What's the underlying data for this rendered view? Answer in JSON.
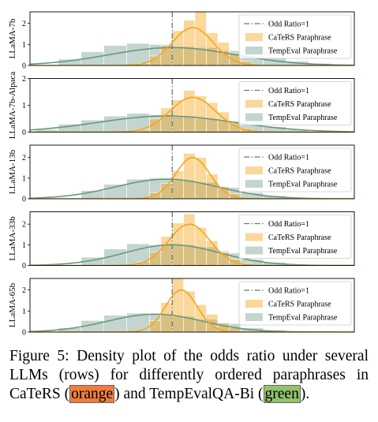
{
  "colors": {
    "orange": "#f4a622",
    "orange_fill": "#fbd28c",
    "green": "#6a9684",
    "green_fill": "#b9cdc3",
    "vline": "#5f7f77",
    "highlight_orange": "#f07d3c",
    "highlight_green": "#92c36b"
  },
  "caption": {
    "prefix": "Figure 5: Density plot of the odds ratio under several LLMs (rows) for differently ordered paraphrases in CaTeRS (",
    "orange_word": "orange",
    "middle": ") and TempEvalQA-Bi (",
    "green_word": "green",
    "suffix": ")."
  },
  "chart_data": [
    {
      "type": "area",
      "ylabel": "LLaMA-7b",
      "ylim": [
        0,
        2.55
      ],
      "yticks": [
        "0",
        "1",
        "2"
      ],
      "vline_x": 1,
      "legend": [
        "Odd Ratio=1",
        "CaTeRS Paraphrase",
        "TempEval Paraphrase"
      ],
      "legend_position": "top-right",
      "series": [
        {
          "name": "CaTeRS Paraphrase",
          "kde": {
            "center": 1.18,
            "sd": 0.18,
            "peak": 1.8
          },
          "bins": [
            [
              0.7,
              0.8,
              0.1
            ],
            [
              0.8,
              0.9,
              0.45
            ],
            [
              0.9,
              1.0,
              0.95
            ],
            [
              1.0,
              1.1,
              1.65
            ],
            [
              1.1,
              1.2,
              2.15
            ],
            [
              1.2,
              1.3,
              2.85
            ],
            [
              1.3,
              1.4,
              1.55
            ],
            [
              1.4,
              1.5,
              1.1
            ],
            [
              1.5,
              1.6,
              0.6
            ],
            [
              1.6,
              1.7,
              0.2
            ]
          ]
        },
        {
          "name": "TempEval Paraphrase",
          "kde": {
            "center": 1.0,
            "sd": 0.55,
            "peak": 0.85
          },
          "bins": [
            [
              0.0,
              0.2,
              0.3
            ],
            [
              0.2,
              0.4,
              0.65
            ],
            [
              0.4,
              0.6,
              0.95
            ],
            [
              0.6,
              0.8,
              1.05
            ],
            [
              0.8,
              1.0,
              1.0
            ],
            [
              1.0,
              1.2,
              0.9
            ],
            [
              1.2,
              1.4,
              0.85
            ],
            [
              1.4,
              1.6,
              0.7
            ],
            [
              1.6,
              1.8,
              0.5
            ],
            [
              1.8,
              2.0,
              0.35
            ],
            [
              2.0,
              2.2,
              0.2
            ],
            [
              2.2,
              2.4,
              0.1
            ]
          ]
        }
      ]
    },
    {
      "type": "area",
      "ylabel": "LLaMA-7b-Alpaca",
      "ylim": [
        0,
        2.0
      ],
      "yticks": [
        "0",
        "1",
        "2"
      ],
      "vline_x": 1,
      "legend": [
        "Odd Ratio=1",
        "CaTeRS Paraphrase",
        "TempEval Paraphrase"
      ],
      "legend_position": "top-right",
      "series": [
        {
          "name": "CaTeRS Paraphrase",
          "kde": {
            "center": 1.18,
            "sd": 0.2,
            "peak": 1.3
          },
          "bins": [
            [
              0.7,
              0.8,
              0.1
            ],
            [
              0.8,
              0.9,
              0.5
            ],
            [
              0.9,
              1.0,
              0.9
            ],
            [
              1.0,
              1.1,
              1.2
            ],
            [
              1.1,
              1.2,
              1.55
            ],
            [
              1.2,
              1.3,
              1.35
            ],
            [
              1.3,
              1.4,
              1.1
            ],
            [
              1.4,
              1.5,
              0.75
            ],
            [
              1.5,
              1.6,
              0.35
            ],
            [
              1.6,
              1.7,
              0.15
            ]
          ]
        },
        {
          "name": "TempEval Paraphrase",
          "kde": {
            "center": 0.95,
            "sd": 0.6,
            "peak": 0.6
          },
          "bins": [
            [
              -0.2,
              0.0,
              0.1
            ],
            [
              0.0,
              0.2,
              0.3
            ],
            [
              0.2,
              0.4,
              0.45
            ],
            [
              0.4,
              0.6,
              0.6
            ],
            [
              0.6,
              0.8,
              0.7
            ],
            [
              0.8,
              1.0,
              0.65
            ],
            [
              1.0,
              1.2,
              0.6
            ],
            [
              1.2,
              1.4,
              0.5
            ],
            [
              1.4,
              1.6,
              0.4
            ],
            [
              1.6,
              1.8,
              0.3
            ],
            [
              1.8,
              2.0,
              0.2
            ],
            [
              2.0,
              2.2,
              0.1
            ]
          ]
        }
      ]
    },
    {
      "type": "area",
      "ylabel": "LLaMA-13b",
      "ylim": [
        0,
        2.6
      ],
      "yticks": [
        "0",
        "1",
        "2"
      ],
      "vline_x": 1,
      "legend": [
        "Odd Ratio=1",
        "CaTeRS Paraphrase",
        "TempEval Paraphrase"
      ],
      "legend_position": "top-right",
      "series": [
        {
          "name": "CaTeRS Paraphrase",
          "kde": {
            "center": 1.18,
            "sd": 0.15,
            "peak": 2.0
          },
          "bins": [
            [
              0.8,
              0.9,
              0.3
            ],
            [
              0.9,
              1.0,
              0.75
            ],
            [
              1.0,
              1.1,
              1.35
            ],
            [
              1.1,
              1.2,
              2.2
            ],
            [
              1.2,
              1.3,
              2.0
            ],
            [
              1.3,
              1.4,
              1.2
            ],
            [
              1.4,
              1.5,
              0.6
            ],
            [
              1.5,
              1.6,
              0.25
            ]
          ]
        },
        {
          "name": "TempEval Paraphrase",
          "kde": {
            "center": 0.95,
            "sd": 0.45,
            "peak": 0.95
          },
          "bins": [
            [
              0.2,
              0.4,
              0.4
            ],
            [
              0.4,
              0.6,
              0.7
            ],
            [
              0.6,
              0.8,
              0.95
            ],
            [
              0.8,
              1.0,
              1.0
            ],
            [
              1.0,
              1.2,
              0.9
            ],
            [
              1.2,
              1.4,
              0.8
            ],
            [
              1.4,
              1.6,
              0.55
            ],
            [
              1.6,
              1.8,
              0.3
            ],
            [
              1.8,
              2.0,
              0.15
            ]
          ]
        }
      ]
    },
    {
      "type": "area",
      "ylabel": "LLaMA-33b",
      "ylim": [
        0,
        2.6
      ],
      "yticks": [
        "0",
        "1",
        "2"
      ],
      "vline_x": 1,
      "legend": [
        "Odd Ratio=1",
        "CaTeRS Paraphrase",
        "TempEval Paraphrase"
      ],
      "legend_position": "top-right",
      "series": [
        {
          "name": "CaTeRS Paraphrase",
          "kde": {
            "center": 1.15,
            "sd": 0.18,
            "peak": 2.0
          },
          "bins": [
            [
              0.7,
              0.8,
              0.2
            ],
            [
              0.8,
              0.9,
              0.65
            ],
            [
              0.9,
              1.0,
              1.4
            ],
            [
              1.0,
              1.1,
              2.05
            ],
            [
              1.1,
              1.2,
              2.5
            ],
            [
              1.2,
              1.3,
              1.85
            ],
            [
              1.3,
              1.4,
              1.2
            ],
            [
              1.4,
              1.5,
              0.7
            ],
            [
              1.5,
              1.6,
              0.3
            ],
            [
              1.6,
              1.7,
              0.1
            ]
          ]
        },
        {
          "name": "TempEval Paraphrase",
          "kde": {
            "center": 1.0,
            "sd": 0.42,
            "peak": 1.0
          },
          "bins": [
            [
              0.2,
              0.4,
              0.4
            ],
            [
              0.4,
              0.6,
              0.8
            ],
            [
              0.6,
              0.8,
              1.05
            ],
            [
              0.8,
              1.0,
              1.0
            ],
            [
              1.0,
              1.2,
              1.0
            ],
            [
              1.2,
              1.4,
              0.9
            ],
            [
              1.4,
              1.6,
              0.6
            ],
            [
              1.6,
              1.8,
              0.3
            ],
            [
              1.8,
              2.0,
              0.15
            ]
          ]
        }
      ]
    },
    {
      "type": "area",
      "ylabel": "LLaMA-65b",
      "ylim": [
        0,
        2.55
      ],
      "yticks": [
        "0",
        "1",
        "2"
      ],
      "vline_x": 1,
      "legend": [
        "Odd Ratio=1",
        "CaTeRS Paraphrase",
        "TempEval Paraphrase"
      ],
      "legend_position": "top-right",
      "series": [
        {
          "name": "CaTeRS Paraphrase",
          "kde": {
            "center": 1.08,
            "sd": 0.14,
            "peak": 2.0
          },
          "bins": [
            [
              0.8,
              0.9,
              0.55
            ],
            [
              0.9,
              1.0,
              1.4
            ],
            [
              1.0,
              1.1,
              2.75
            ],
            [
              1.1,
              1.2,
              1.95
            ],
            [
              1.2,
              1.3,
              1.3
            ],
            [
              1.3,
              1.4,
              0.85
            ],
            [
              1.4,
              1.5,
              0.45
            ],
            [
              1.5,
              1.6,
              0.2
            ]
          ]
        },
        {
          "name": "TempEval Paraphrase",
          "kde": {
            "center": 0.85,
            "sd": 0.42,
            "peak": 0.85
          },
          "bins": [
            [
              0.0,
              0.2,
              0.2
            ],
            [
              0.2,
              0.4,
              0.55
            ],
            [
              0.4,
              0.6,
              0.8
            ],
            [
              0.6,
              0.8,
              0.9
            ],
            [
              0.8,
              1.0,
              0.85
            ],
            [
              1.0,
              1.2,
              0.75
            ],
            [
              1.2,
              1.4,
              0.6
            ],
            [
              1.4,
              1.6,
              0.4
            ],
            [
              1.6,
              1.8,
              0.2
            ],
            [
              1.8,
              2.0,
              0.1
            ]
          ]
        }
      ]
    }
  ]
}
